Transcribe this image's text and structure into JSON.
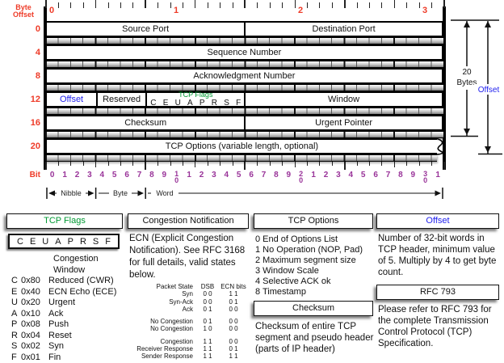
{
  "colors": {
    "red": "#ee3b28",
    "purple": "#993399",
    "green": "#009933",
    "blue": "#2222ee"
  },
  "diagram": {
    "byte_offset_label": "Byte Offset",
    "bit_label": "Bit",
    "top_ruler_labels": [
      {
        "label": "0",
        "bit": 0
      },
      {
        "label": "1",
        "bit": 10
      },
      {
        "label": "2",
        "bit": 20
      },
      {
        "label": "3",
        "bit": 30
      }
    ],
    "tcp_flags_label": "TCP Flags",
    "flags_letters": [
      "C",
      "E",
      "U",
      "A",
      "P",
      "R",
      "S",
      "F"
    ],
    "rows": [
      {
        "offset": "0",
        "fields": [
          {
            "label": "Source Port",
            "bits": 16
          },
          {
            "label": "Destination Port",
            "bits": 16
          }
        ]
      },
      {
        "offset": "4",
        "fields": [
          {
            "label": "Sequence Number",
            "bits": 32
          }
        ]
      },
      {
        "offset": "8",
        "fields": [
          {
            "label": "Acknowledgment Number",
            "bits": 32
          }
        ]
      },
      {
        "offset": "12",
        "fields": [
          {
            "label": "Offset",
            "bits": 4,
            "color": "blue"
          },
          {
            "label": "Reserved",
            "bits": 4
          },
          {
            "label": "TCP Flags",
            "bits": 8,
            "type": "flags"
          },
          {
            "label": "Window",
            "bits": 16
          }
        ]
      },
      {
        "offset": "16",
        "fields": [
          {
            "label": "Checksum",
            "bits": 16
          },
          {
            "label": "Urgent Pointer",
            "bits": 16
          }
        ]
      },
      {
        "offset": "20",
        "fields": [
          {
            "label": "TCP Options (variable length, optional)",
            "bits": 32
          }
        ],
        "wavy": true
      }
    ],
    "bit_numbers": [
      "0",
      "1",
      "2",
      "3",
      "4",
      "5",
      "6",
      "7",
      "8",
      "9",
      "10",
      "1",
      "2",
      "3",
      "4",
      "5",
      "6",
      "7",
      "8",
      "9",
      "20",
      "1",
      "2",
      "3",
      "4",
      "5",
      "6",
      "7",
      "8",
      "9",
      "30",
      "1"
    ],
    "measures": {
      "nibble": "Nibble",
      "byte": "Byte",
      "word": "Word"
    },
    "annotations": {
      "bytes_top": "20",
      "bytes_bottom": "Bytes",
      "offset": "Offset"
    }
  },
  "legend": {
    "tcp_flags": {
      "title": "TCP Flags",
      "letters": [
        "C",
        "E",
        "U",
        "A",
        "P",
        "R",
        "S",
        "F"
      ],
      "first_line": "Congestion Window",
      "entries": [
        [
          "C",
          "0x80",
          "Reduced (CWR)"
        ],
        [
          "E",
          "0x40",
          "ECN Echo (ECE)"
        ],
        [
          "U",
          "0x20",
          "Urgent"
        ],
        [
          "A",
          "0x10",
          "Ack"
        ],
        [
          "P",
          "0x08",
          "Push"
        ],
        [
          "R",
          "0x04",
          "Reset"
        ],
        [
          "S",
          "0x02",
          "Syn"
        ],
        [
          "F",
          "0x01",
          "Fin"
        ]
      ]
    },
    "congestion": {
      "title": "Congestion Notification",
      "intro": "ECN (Explicit Congestion Notification).  See RFC 3168 for full details, valid states below.",
      "table": {
        "headers": [
          "Packet State",
          "DSB",
          "ECN bits"
        ],
        "groups": [
          [
            [
              "Syn",
              "0 0",
              "1 1"
            ],
            [
              "Syn-Ack",
              "0 0",
              "0 1"
            ],
            [
              "Ack",
              "0 1",
              "0 0"
            ]
          ],
          [
            [
              "No Congestion",
              "0 1",
              "0 0"
            ],
            [
              "No Congestion",
              "1 0",
              "0 0"
            ]
          ],
          [
            [
              "Congestion",
              "1 1",
              "0 0"
            ],
            [
              "Receiver Response",
              "1 1",
              "0 1"
            ],
            [
              "Sender Response",
              "1 1",
              "1 1"
            ]
          ]
        ]
      }
    },
    "options": {
      "title": "TCP Options",
      "items": [
        "0 End of Options List",
        "1 No Operation (NOP, Pad)",
        "2 Maximum segment size",
        "3 Window Scale",
        "4 Selective ACK ok",
        "8 Timestamp"
      ]
    },
    "checksum": {
      "title": "Checksum",
      "body": "Checksum of entire TCP segment and pseudo header (parts of IP header)"
    },
    "offset_box": {
      "title": "Offset",
      "body": "Number of 32-bit words in TCP header, minimum value of 5.  Multiply by 4 to get byte count."
    },
    "rfc": {
      "title": "RFC 793",
      "body": "Please refer to RFC 793 for the complete Transmission Control Protocol (TCP) Specification."
    }
  }
}
